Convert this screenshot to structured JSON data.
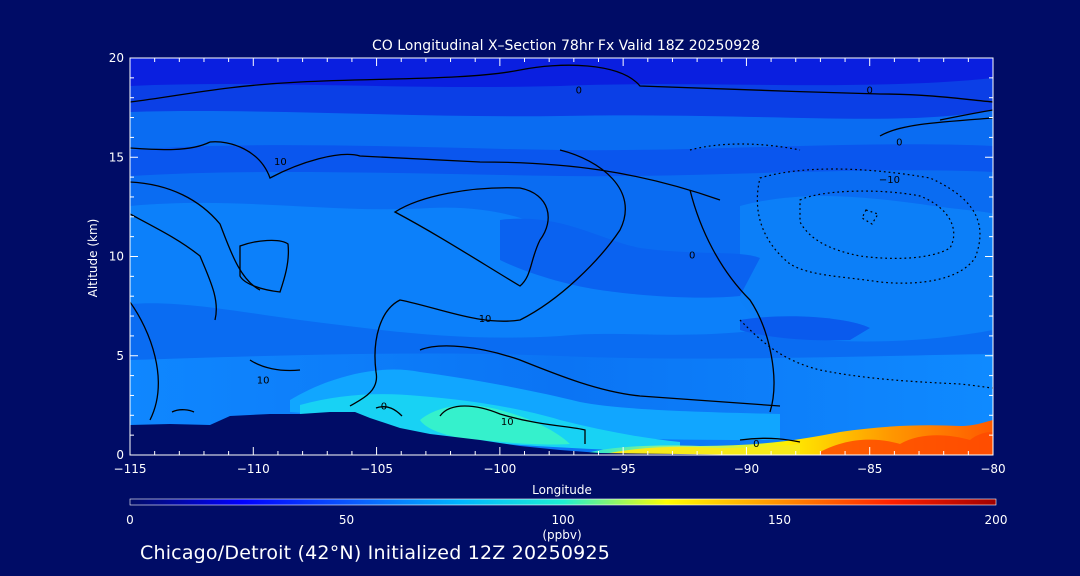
{
  "chart_data": {
    "type": "heatmap",
    "title": "CO Longitudinal X–Section 78hr  Fx Valid 18Z 20250928",
    "xlabel": "Longitude",
    "ylabel": "Altitude (km)",
    "xlim": [
      -115,
      -80
    ],
    "ylim": [
      0,
      20
    ],
    "x_ticks": [
      -115,
      -110,
      -105,
      -100,
      -95,
      -90,
      -85,
      -80
    ],
    "x_tick_labels": [
      "−115",
      "−110",
      "−105",
      "−100",
      "−95",
      "−90",
      "−85",
      "−80"
    ],
    "y_ticks": [
      0,
      5,
      10,
      15,
      20
    ],
    "y_tick_labels": [
      "0",
      "5",
      "10",
      "15",
      "20"
    ],
    "colorbar": {
      "label": "(ppbv)",
      "range": [
        0,
        200
      ],
      "ticks": [
        0,
        50,
        100,
        150,
        200
      ],
      "tick_labels": [
        "0",
        "50",
        "100",
        "150",
        "200"
      ],
      "colors": [
        "#000c66",
        "#0000ff",
        "#0a5cff",
        "#00b4ff",
        "#1ef0d2",
        "#ffff00",
        "#ff9000",
        "#ff1e00",
        "#a00000"
      ]
    },
    "contour_labels": [
      {
        "text": "0",
        "lon": -96.8,
        "alt": 18.2
      },
      {
        "text": "0",
        "lon": -85.0,
        "alt": 18.2
      },
      {
        "text": "0",
        "lon": -83.8,
        "alt": 15.6
      },
      {
        "text": "10",
        "lon": -108.9,
        "alt": 14.6
      },
      {
        "text": "−10",
        "lon": -84.2,
        "alt": 13.7
      },
      {
        "text": "0",
        "lon": -92.2,
        "alt": 9.9
      },
      {
        "text": "10",
        "lon": -100.6,
        "alt": 6.7
      },
      {
        "text": "10",
        "lon": -109.6,
        "alt": 3.6
      },
      {
        "text": "0",
        "lon": -104.7,
        "alt": 2.3
      },
      {
        "text": "10",
        "lon": -99.7,
        "alt": 1.5
      },
      {
        "text": "0",
        "lon": -89.6,
        "alt": 0.4
      }
    ],
    "footer": "Chicago/Detroit (42°N) Initialized 12Z 20250925"
  }
}
